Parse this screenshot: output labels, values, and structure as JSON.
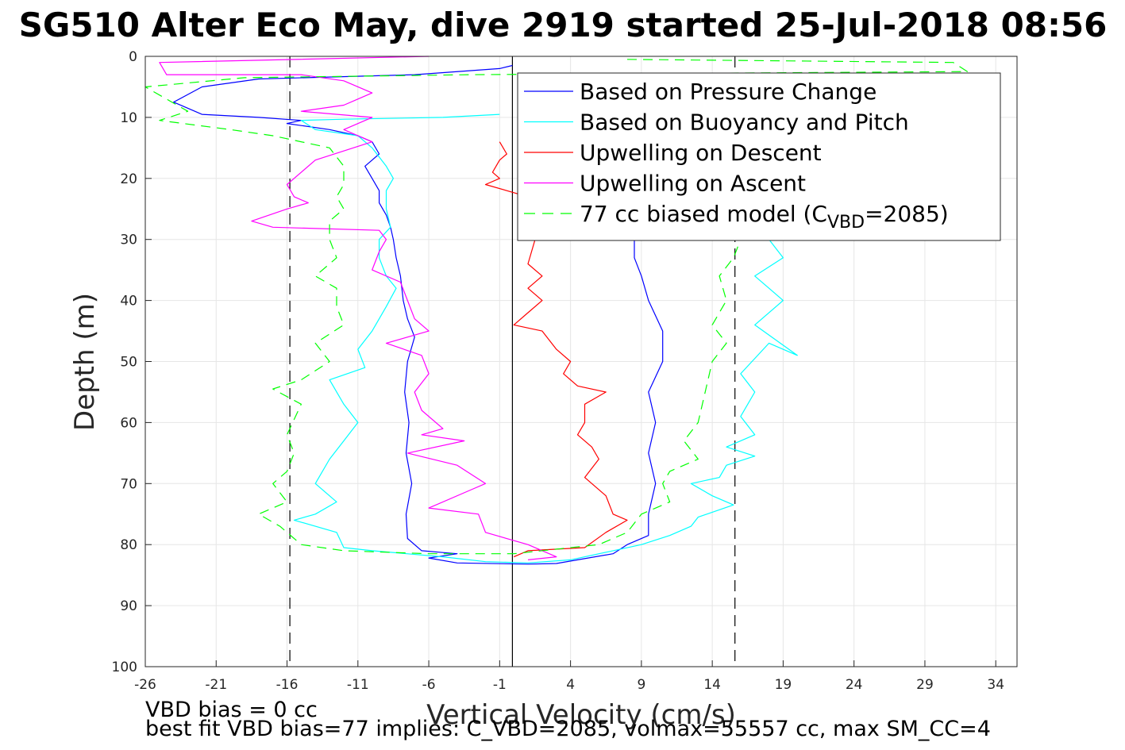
{
  "chart_data": {
    "type": "line",
    "title": "SG510 Alter Eco May, dive 2919 started 25-Jul-2018 08:56",
    "xlabel": "Vertical Velocity (cm/s)",
    "ylabel": "Depth (m)",
    "xlim": [
      -26,
      35.5
    ],
    "ylim": [
      0,
      100
    ],
    "y_reversed": true,
    "grid": true,
    "xticks": [
      -26,
      -21,
      -16,
      -11,
      -6,
      -1,
      4,
      9,
      14,
      19,
      24,
      29,
      34
    ],
    "yticks": [
      0,
      10,
      20,
      30,
      40,
      50,
      60,
      70,
      80,
      90,
      100
    ],
    "reference_lines": [
      {
        "x": -0.1,
        "style": "solid",
        "color": "#000000"
      },
      {
        "x": -15.8,
        "style": "dashed",
        "color": "#000000"
      },
      {
        "x": 15.6,
        "style": "dashed",
        "color": "#000000"
      }
    ],
    "legend_position": "top-right",
    "series": [
      {
        "name": "Based on Pressure Change",
        "color": "#0000ff",
        "style": "solid",
        "points": [
          [
            -0.1,
            1.5
          ],
          [
            -1,
            2
          ],
          [
            -7,
            3
          ],
          [
            -18,
            3.7
          ],
          [
            -22,
            5
          ],
          [
            -24,
            7.5
          ],
          [
            -22,
            9.5
          ],
          [
            -18,
            10
          ],
          [
            -15,
            10.5
          ],
          [
            -16,
            11
          ],
          [
            -13,
            12
          ],
          [
            -11,
            13
          ],
          [
            -10,
            14
          ],
          [
            -9.5,
            16
          ],
          [
            -10,
            17
          ],
          [
            -10.5,
            18
          ],
          [
            -10,
            20
          ],
          [
            -9.5,
            22
          ],
          [
            -9.5,
            24
          ],
          [
            -9,
            26
          ],
          [
            -8.7,
            28
          ],
          [
            -8.5,
            30
          ],
          [
            -8.3,
            33
          ],
          [
            -8,
            36
          ],
          [
            -7.8,
            40
          ],
          [
            -7.5,
            43
          ],
          [
            -7,
            46
          ],
          [
            -7.5,
            50
          ],
          [
            -7.7,
            55
          ],
          [
            -7.4,
            60
          ],
          [
            -7.6,
            65
          ],
          [
            -7.2,
            70
          ],
          [
            -7.6,
            75
          ],
          [
            -7.5,
            79
          ],
          [
            -6.5,
            81
          ],
          [
            -5,
            81.3
          ],
          [
            -4,
            81.5
          ],
          [
            -6,
            82.2
          ],
          [
            -4,
            83
          ],
          [
            1,
            83.2
          ],
          [
            3,
            83.1
          ],
          [
            7,
            81.5
          ],
          [
            8,
            80
          ],
          [
            9.5,
            78.5
          ],
          [
            9.5,
            75
          ],
          [
            10,
            70
          ],
          [
            9.5,
            65
          ],
          [
            10,
            60
          ],
          [
            9.5,
            55
          ],
          [
            10.5,
            50
          ],
          [
            10.5,
            45
          ],
          [
            9.5,
            40
          ],
          [
            9,
            36
          ],
          [
            8.5,
            33
          ],
          [
            8.5,
            30
          ],
          [
            8.5,
            27
          ],
          [
            8,
            24
          ],
          [
            8,
            21
          ],
          [
            8,
            18
          ],
          [
            7.5,
            15
          ]
        ]
      },
      {
        "name": "Based on Buoyancy and Pitch",
        "color": "#00ffff",
        "style": "solid",
        "points": [
          [
            -1,
            9.5
          ],
          [
            -5,
            10
          ],
          [
            -12,
            10.3
          ],
          [
            -15,
            10.5
          ],
          [
            -14,
            12
          ],
          [
            -11,
            13
          ],
          [
            -10,
            15
          ],
          [
            -9,
            18
          ],
          [
            -8.5,
            20
          ],
          [
            -9,
            22
          ],
          [
            -9,
            25
          ],
          [
            -8.7,
            28
          ],
          [
            -9.5,
            30
          ],
          [
            -9.5,
            33
          ],
          [
            -9,
            36
          ],
          [
            -8.3,
            38
          ],
          [
            -9,
            41
          ],
          [
            -10,
            45
          ],
          [
            -11,
            48
          ],
          [
            -10.5,
            51
          ],
          [
            -13,
            53
          ],
          [
            -12,
            57
          ],
          [
            -11,
            60
          ],
          [
            -12,
            63
          ],
          [
            -13,
            66
          ],
          [
            -14,
            70
          ],
          [
            -12.5,
            73
          ],
          [
            -14,
            75
          ],
          [
            -15.5,
            76
          ],
          [
            -12.5,
            78
          ],
          [
            -12,
            80.5
          ],
          [
            -10,
            81
          ],
          [
            -5,
            82
          ],
          [
            -2,
            82.8
          ],
          [
            1,
            83
          ],
          [
            4,
            82.5
          ],
          [
            7,
            81
          ],
          [
            9,
            80
          ],
          [
            11,
            78.5
          ],
          [
            12.5,
            77
          ],
          [
            13,
            75.5
          ],
          [
            15.5,
            73.5
          ],
          [
            14,
            72
          ],
          [
            12.5,
            70
          ],
          [
            14.5,
            69
          ],
          [
            15,
            67
          ],
          [
            17,
            65.5
          ],
          [
            15,
            64
          ],
          [
            17,
            62
          ],
          [
            16,
            59
          ],
          [
            17,
            55
          ],
          [
            16,
            52
          ],
          [
            18,
            47
          ],
          [
            20,
            49
          ],
          [
            17,
            44
          ],
          [
            19,
            40
          ],
          [
            18,
            38
          ],
          [
            17,
            36
          ],
          [
            19,
            33
          ],
          [
            18,
            30
          ],
          [
            18,
            27
          ],
          [
            16,
            24
          ],
          [
            18,
            20
          ],
          [
            17,
            17
          ],
          [
            16,
            14
          ],
          [
            7,
            10
          ]
        ]
      },
      {
        "name": "Upwelling on Descent",
        "color": "#ff0000",
        "style": "solid",
        "points": [
          [
            -1,
            14
          ],
          [
            -0.5,
            16
          ],
          [
            -1,
            17
          ],
          [
            -1.5,
            19
          ],
          [
            -1,
            20
          ],
          [
            -2,
            21
          ],
          [
            1,
            23
          ],
          [
            1,
            26
          ],
          [
            1.5,
            30
          ],
          [
            1,
            34
          ],
          [
            2,
            36
          ],
          [
            1,
            38
          ],
          [
            2,
            40
          ],
          [
            1,
            42
          ],
          [
            0,
            44
          ],
          [
            2,
            45
          ],
          [
            3,
            48
          ],
          [
            4,
            50
          ],
          [
            3.5,
            52
          ],
          [
            4.5,
            54
          ],
          [
            6.5,
            55
          ],
          [
            5,
            57
          ],
          [
            5,
            60
          ],
          [
            4.5,
            62
          ],
          [
            5.5,
            64
          ],
          [
            6,
            66
          ],
          [
            5,
            69
          ],
          [
            6.5,
            72
          ],
          [
            7,
            75
          ],
          [
            8,
            76
          ],
          [
            6.5,
            78
          ],
          [
            5,
            80.5
          ],
          [
            1,
            81
          ],
          [
            0,
            82
          ]
        ]
      },
      {
        "name": "Upwelling on Ascent",
        "color": "#ff00ff",
        "style": "solid",
        "points": [
          [
            -6,
            0
          ],
          [
            -25,
            1
          ],
          [
            -24.5,
            3
          ],
          [
            -15,
            3
          ],
          [
            -12,
            4
          ],
          [
            -10,
            6
          ],
          [
            -12,
            8
          ],
          [
            -15,
            9
          ],
          [
            -10,
            10
          ],
          [
            -12,
            12
          ],
          [
            -10,
            14
          ],
          [
            -14,
            17
          ],
          [
            -15,
            19
          ],
          [
            -16,
            21
          ],
          [
            -15.5,
            23
          ],
          [
            -14.5,
            24
          ],
          [
            -16,
            25
          ],
          [
            -18.5,
            27
          ],
          [
            -17,
            28
          ],
          [
            -9.5,
            28.5
          ],
          [
            -9,
            30
          ],
          [
            -9.5,
            32
          ],
          [
            -10,
            35
          ],
          [
            -8,
            37
          ],
          [
            -7.5,
            40
          ],
          [
            -7,
            43
          ],
          [
            -6,
            45
          ],
          [
            -9,
            47
          ],
          [
            -6.5,
            49
          ],
          [
            -6,
            52
          ],
          [
            -7,
            55
          ],
          [
            -6.5,
            58
          ],
          [
            -5,
            61
          ],
          [
            -6.5,
            62
          ],
          [
            -3.5,
            63
          ],
          [
            -7.5,
            65
          ],
          [
            -4,
            67
          ],
          [
            -2,
            70
          ],
          [
            -3,
            71
          ],
          [
            -6,
            74
          ],
          [
            -2.5,
            75
          ],
          [
            -2,
            78
          ],
          [
            1,
            80
          ],
          [
            3,
            82
          ],
          [
            1,
            82.5
          ]
        ]
      },
      {
        "name": "77 cc biased model (C_VBD=2085)",
        "color": "#00ff00",
        "style": "dashed",
        "points": [
          [
            8,
            0.5
          ],
          [
            31,
            1
          ],
          [
            32,
            2.5
          ],
          [
            -3,
            3
          ],
          [
            -19,
            3.5
          ],
          [
            -26,
            5
          ],
          [
            -23,
            9
          ],
          [
            -25,
            10.5
          ],
          [
            -20,
            12
          ],
          [
            -17,
            13
          ],
          [
            -13,
            15
          ],
          [
            -12,
            18
          ],
          [
            -12,
            21
          ],
          [
            -12.5,
            23
          ],
          [
            -12,
            25
          ],
          [
            -13,
            27
          ],
          [
            -13,
            30
          ],
          [
            -12.5,
            33
          ],
          [
            -14,
            36
          ],
          [
            -12.5,
            38
          ],
          [
            -12.5,
            41
          ],
          [
            -12,
            44
          ],
          [
            -14,
            47
          ],
          [
            -13,
            50
          ],
          [
            -15,
            53
          ],
          [
            -17,
            54.5
          ],
          [
            -15,
            57
          ],
          [
            -16,
            62
          ],
          [
            -15.5,
            65
          ],
          [
            -16,
            68
          ],
          [
            -17,
            70
          ],
          [
            -16,
            73
          ],
          [
            -18,
            75
          ],
          [
            -16.5,
            77
          ],
          [
            -15,
            80
          ],
          [
            -12,
            81
          ],
          [
            -6,
            81.5
          ],
          [
            0,
            81.5
          ],
          [
            6,
            80
          ],
          [
            8,
            78
          ],
          [
            9,
            75
          ],
          [
            11,
            73
          ],
          [
            10.5,
            70
          ],
          [
            11,
            68
          ],
          [
            13,
            66
          ],
          [
            12,
            63
          ],
          [
            13,
            60
          ],
          [
            13.5,
            55
          ],
          [
            14,
            50
          ],
          [
            15,
            47
          ],
          [
            14,
            44
          ],
          [
            15,
            40
          ],
          [
            14.5,
            36
          ],
          [
            15.5,
            33
          ],
          [
            16,
            30
          ],
          [
            16,
            26
          ],
          [
            15,
            20
          ]
        ]
      }
    ],
    "annotations": [
      "VBD bias = 0 cc",
      "best fit VBD bias=77 implies: C_VBD=2085, volmax=55557 cc, max SM_CC=4"
    ]
  },
  "legend": {
    "items": [
      {
        "label": "Based on Pressure Change",
        "color": "#0000ff",
        "dash": false
      },
      {
        "label": "Based on Buoyancy and Pitch",
        "color": "#00ffff",
        "dash": false
      },
      {
        "label": "Upwelling on Descent",
        "color": "#ff0000",
        "dash": false
      },
      {
        "label": "Upwelling on Ascent",
        "color": "#ff00ff",
        "dash": false
      },
      {
        "label": "77 cc biased model (C",
        "sub": "VBD",
        "tail": "=2085)",
        "color": "#00ff00",
        "dash": true
      }
    ]
  },
  "footer": {
    "line1": "VBD bias = 0 cc",
    "line2": "best fit VBD bias=77 implies: C_VBD=2085, volmax=55557 cc, max SM_CC=4"
  }
}
